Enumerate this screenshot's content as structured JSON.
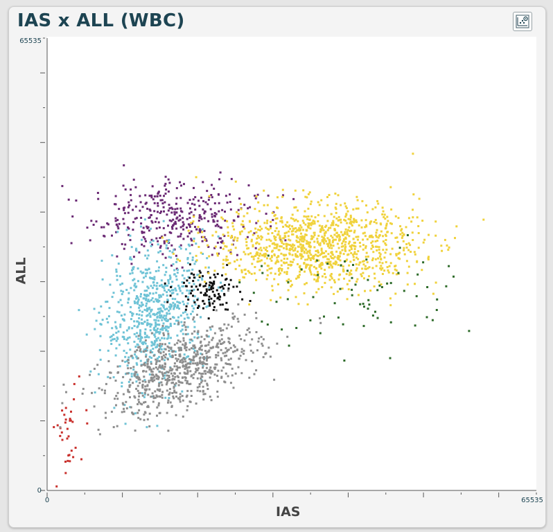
{
  "window": {
    "title": "IAS x ALL (WBC)",
    "toolbar_icon": "chart-settings-icon"
  },
  "chart_data": {
    "type": "scatter",
    "title": "IAS x ALL (WBC)",
    "xlabel": "IAS",
    "ylabel": "ALL",
    "xlim": [
      0,
      65535
    ],
    "ylim": [
      0,
      65535
    ],
    "x_tick_labels": [
      "0",
      "65535"
    ],
    "y_tick_labels": [
      "0",
      "65535"
    ],
    "grid": false,
    "series": [
      {
        "color": "#c9302c",
        "center": [
          2800,
          8000
        ],
        "spread": [
          1100,
          3000
        ],
        "count": 35,
        "values": "cluster"
      },
      {
        "color": "#6b2a74",
        "center": [
          17000,
          39500
        ],
        "spread": [
          5500,
          2800
        ],
        "count": 360
      },
      {
        "color": "#6fc3d6",
        "center": [
          14500,
          25500
        ],
        "spread": [
          3400,
          4800
        ],
        "count": 700
      },
      {
        "color": "#8e8e8e",
        "center": [
          18000,
          17500
        ],
        "spread": [
          5200,
          2800
        ],
        "count": 700
      },
      {
        "color": "#111111",
        "center": [
          21500,
          29200
        ],
        "spread": [
          2100,
          1500
        ],
        "count": 110
      },
      {
        "color": "#f0d23c",
        "center": [
          36000,
          35500
        ],
        "spread": [
          6800,
          3100
        ],
        "count": 1100
      },
      {
        "color": "#2e6b2a",
        "center": [
          42000,
          28000
        ],
        "spread": [
          7500,
          3800
        ],
        "count": 70
      }
    ]
  }
}
